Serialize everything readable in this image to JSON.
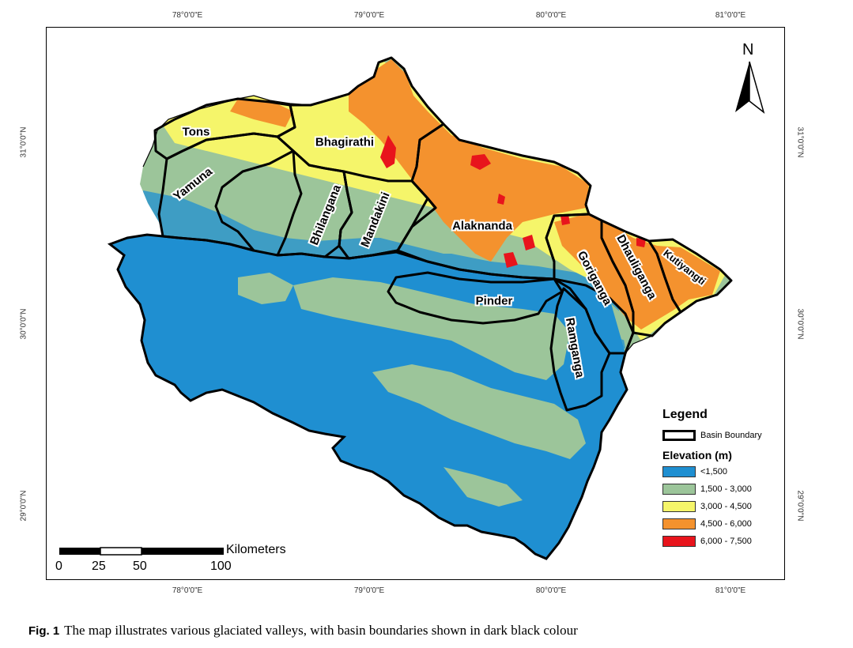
{
  "map": {
    "graticule": {
      "longitudes": [
        "78°0'0\"E",
        "79°0'0\"E",
        "80°0'0\"E",
        "81°0'0\"E"
      ],
      "latitudes": [
        "31°0'0\"N",
        "30°0'0\"N",
        "29°0'0\"N"
      ]
    },
    "basins": [
      "Tons",
      "Yamuna",
      "Bhagirathi",
      "Bhilangana",
      "Mandakini",
      "Alaknanda",
      "Pinder",
      "Goriganga",
      "Dhauliganga",
      "Kutiyangti",
      "Ramganga"
    ],
    "north_label": "N",
    "scale": {
      "unit": "Kilometers",
      "ticks": [
        "0",
        "25",
        "50",
        "100"
      ]
    }
  },
  "legend": {
    "title": "Legend",
    "basin_boundary_label": "Basin Boundary",
    "elevation_title": "Elevation (m)",
    "classes": [
      {
        "label": "<1,500",
        "color": "#1f8fd1"
      },
      {
        "label": "1,500 - 3,000",
        "color": "#9cc59a"
      },
      {
        "label": "3,000 - 4,500",
        "color": "#f5f56a"
      },
      {
        "label": "4,500 - 6,000",
        "color": "#f4922e"
      },
      {
        "label": "6,000 - 7,500",
        "color": "#e8141c"
      }
    ]
  },
  "caption": {
    "label": "Fig. 1",
    "text": "The map illustrates various glaciated valleys, with basin boundaries shown in dark black colour"
  }
}
